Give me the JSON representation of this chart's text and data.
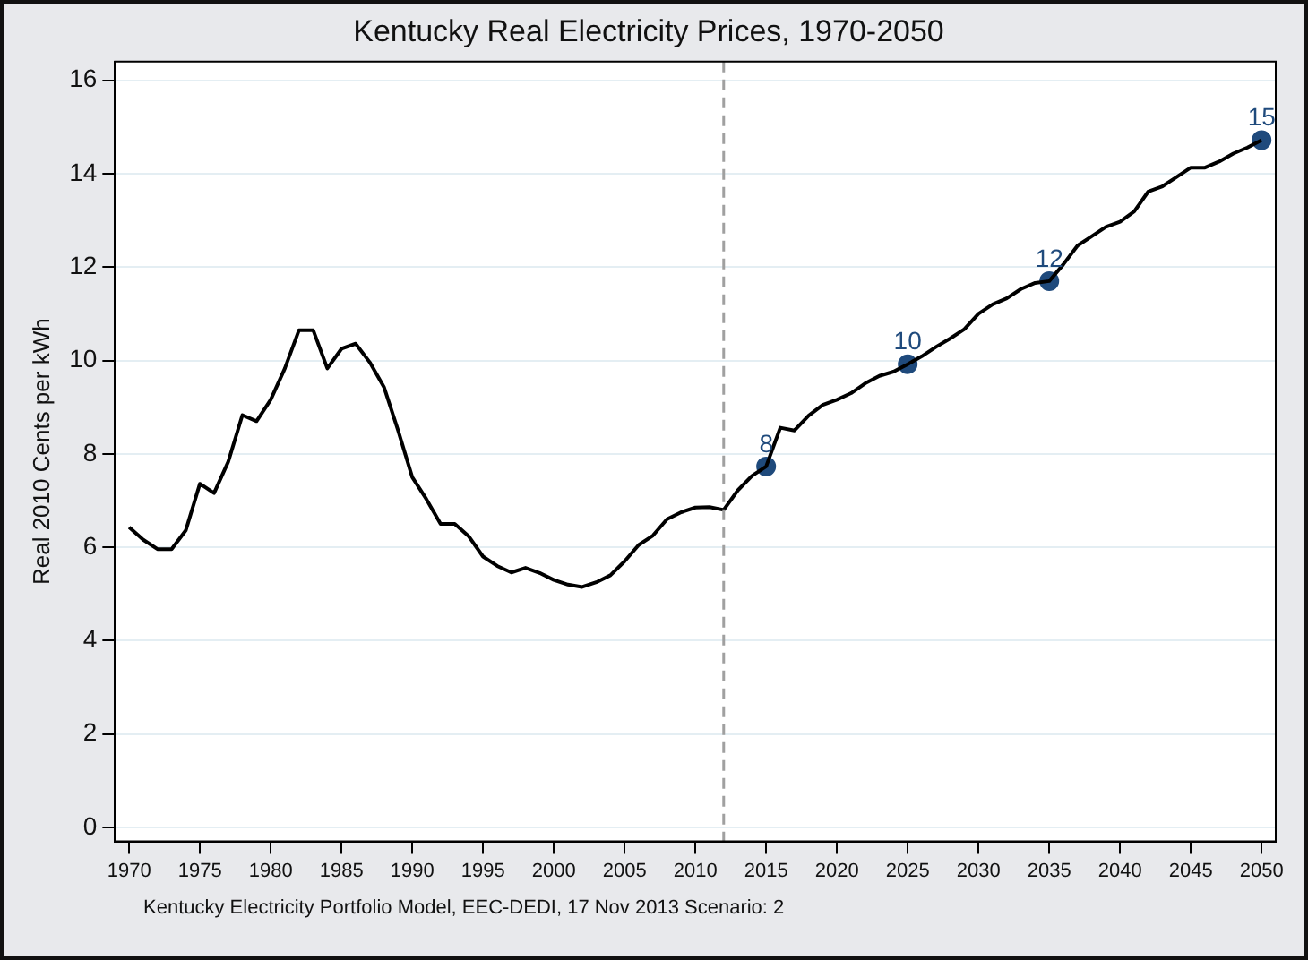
{
  "chart_data": {
    "type": "line",
    "title": "Kentucky Real Electricity Prices, 1970-2050",
    "ylabel": "Real 2010 Cents per kWh",
    "annotations": [
      "Kentucky Electricity Portfolio Model, EEC-DEDI, 17 Nov 2013 Scenario: 2"
    ],
    "x": [
      1970,
      1971,
      1972,
      1973,
      1974,
      1975,
      1976,
      1977,
      1978,
      1979,
      1980,
      1981,
      1982,
      1983,
      1984,
      1985,
      1986,
      1987,
      1988,
      1989,
      1990,
      1991,
      1992,
      1993,
      1994,
      1995,
      1996,
      1997,
      1998,
      1999,
      2000,
      2001,
      2002,
      2003,
      2004,
      2005,
      2006,
      2007,
      2008,
      2009,
      2010,
      2011,
      2012,
      2013,
      2014,
      2015,
      2016,
      2017,
      2018,
      2019,
      2020,
      2021,
      2022,
      2023,
      2024,
      2025,
      2026,
      2027,
      2028,
      2029,
      2030,
      2031,
      2032,
      2033,
      2034,
      2035,
      2036,
      2037,
      2038,
      2039,
      2040,
      2041,
      2042,
      2043,
      2044,
      2045,
      2046,
      2047,
      2048,
      2049,
      2050
    ],
    "series": [
      {
        "color": "#000000",
        "values": [
          6.43,
          6.16,
          5.96,
          5.96,
          6.36,
          7.36,
          7.16,
          7.83,
          8.83,
          8.7,
          9.16,
          9.83,
          10.65,
          10.65,
          9.83,
          10.25,
          10.36,
          9.96,
          9.43,
          8.5,
          7.5,
          7.03,
          6.5,
          6.5,
          6.23,
          5.8,
          5.6,
          5.46,
          5.56,
          5.45,
          5.3,
          5.2,
          5.15,
          5.25,
          5.4,
          5.7,
          6.05,
          6.25,
          6.6,
          6.75,
          6.85,
          6.86,
          6.8,
          7.22,
          7.53,
          7.73,
          8.56,
          8.5,
          8.82,
          9.05,
          9.16,
          9.3,
          9.51,
          9.67,
          9.76,
          9.92,
          10.09,
          10.29,
          10.47,
          10.67,
          11.0,
          11.2,
          11.33,
          11.53,
          11.66,
          11.7,
          12.06,
          12.46,
          12.66,
          12.86,
          12.97,
          13.19,
          13.62,
          13.73,
          13.93,
          14.13,
          14.13,
          14.26,
          14.43,
          14.56,
          14.72
        ]
      },
      {
        "type": "scatter",
        "color": "#1f4a7c",
        "marker": "circle",
        "x": [
          2015,
          2025,
          2035,
          2050
        ],
        "values": [
          7.73,
          9.92,
          11.7,
          14.72
        ],
        "value_labels": [
          "8",
          "10",
          "12",
          "15"
        ]
      }
    ],
    "xlim": [
      1969,
      2051
    ],
    "xticks": [
      1970,
      1975,
      1980,
      1985,
      1990,
      1995,
      2000,
      2005,
      2010,
      2015,
      2020,
      2025,
      2030,
      2035,
      2040,
      2045,
      2050
    ],
    "ylim": [
      -0.3,
      16.4
    ],
    "yticks": [
      0,
      2,
      4,
      6,
      8,
      10,
      12,
      14,
      16
    ],
    "ref_lines": [
      {
        "axis": "x",
        "value": 2012,
        "color": "#a0a0a0",
        "line_style": "dashed"
      }
    ],
    "grid": "y",
    "legend": false
  }
}
